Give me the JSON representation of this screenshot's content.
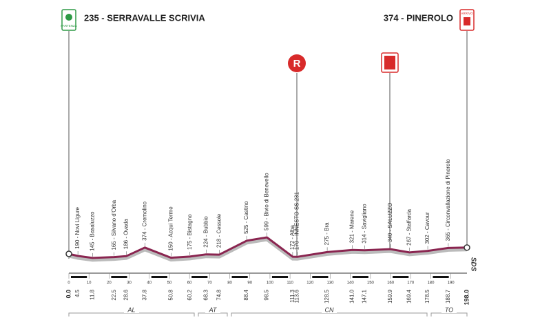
{
  "chart_data": {
    "type": "line",
    "x": [
      0,
      4.5,
      11.8,
      22.5,
      28.6,
      37.8,
      50.8,
      60.2,
      68.3,
      74.8,
      88.4,
      98.5,
      111.3,
      113.6,
      128.5,
      141,
      147.1,
      159.9,
      169.4,
      178.5,
      188.7,
      198
    ],
    "x_labels": [
      "0.0",
      "4.5",
      "11.8",
      "22.5",
      "28.6",
      "37.8",
      "50.8",
      "60.2",
      "68.3",
      "74.8",
      "88.4",
      "98.5",
      "111.3",
      "113.6",
      "128.5",
      "141.0",
      "147.1",
      "159.9",
      "169.4",
      "178.5",
      "188.7",
      "198.0"
    ],
    "values": [
      235,
      190,
      145,
      165,
      186,
      374,
      150,
      175,
      224,
      218,
      525,
      599,
      172,
      170,
      275,
      321,
      314,
      340,
      267,
      302,
      365,
      374
    ],
    "value_labels": [
      "235 - SERRAVALLE SCRIVIA",
      "190 - Novi Ligure",
      "145 - Basaluzzo",
      "165 - Silvano d'Orba",
      "186 - Ovada",
      "374 - Cremolino",
      "150 - Acqui Terme",
      "175 - Bistagno",
      "224 - Bubbio",
      "218 - Cessole",
      "525 - Castino",
      "599 - Bivio di Benevello",
      "172 - Alba",
      "170 - INNESTO SS.231",
      "275 - Bra",
      "321 - Marene",
      "314 - Savigliano",
      "340 - SALUZZO",
      "267 - Staffarda",
      "302 - Cavour",
      "365 - Circonvallazione di Pinerolo",
      "374 - PINEROLO"
    ],
    "color": "#8a2550",
    "xlim": [
      0,
      198
    ],
    "ylim": [
      0,
      1000
    ],
    "xticks": [
      0,
      10,
      20,
      30,
      40,
      50,
      60,
      70,
      80,
      90,
      100,
      110,
      120,
      130,
      140,
      150,
      160,
      170,
      180,
      190
    ],
    "regions": [
      "AL",
      "AT",
      "CN",
      "TO"
    ],
    "icons": {
      "start": "PARTENZA",
      "finish": "ARRIVO",
      "refuel": "R"
    },
    "logo": "SDS"
  }
}
